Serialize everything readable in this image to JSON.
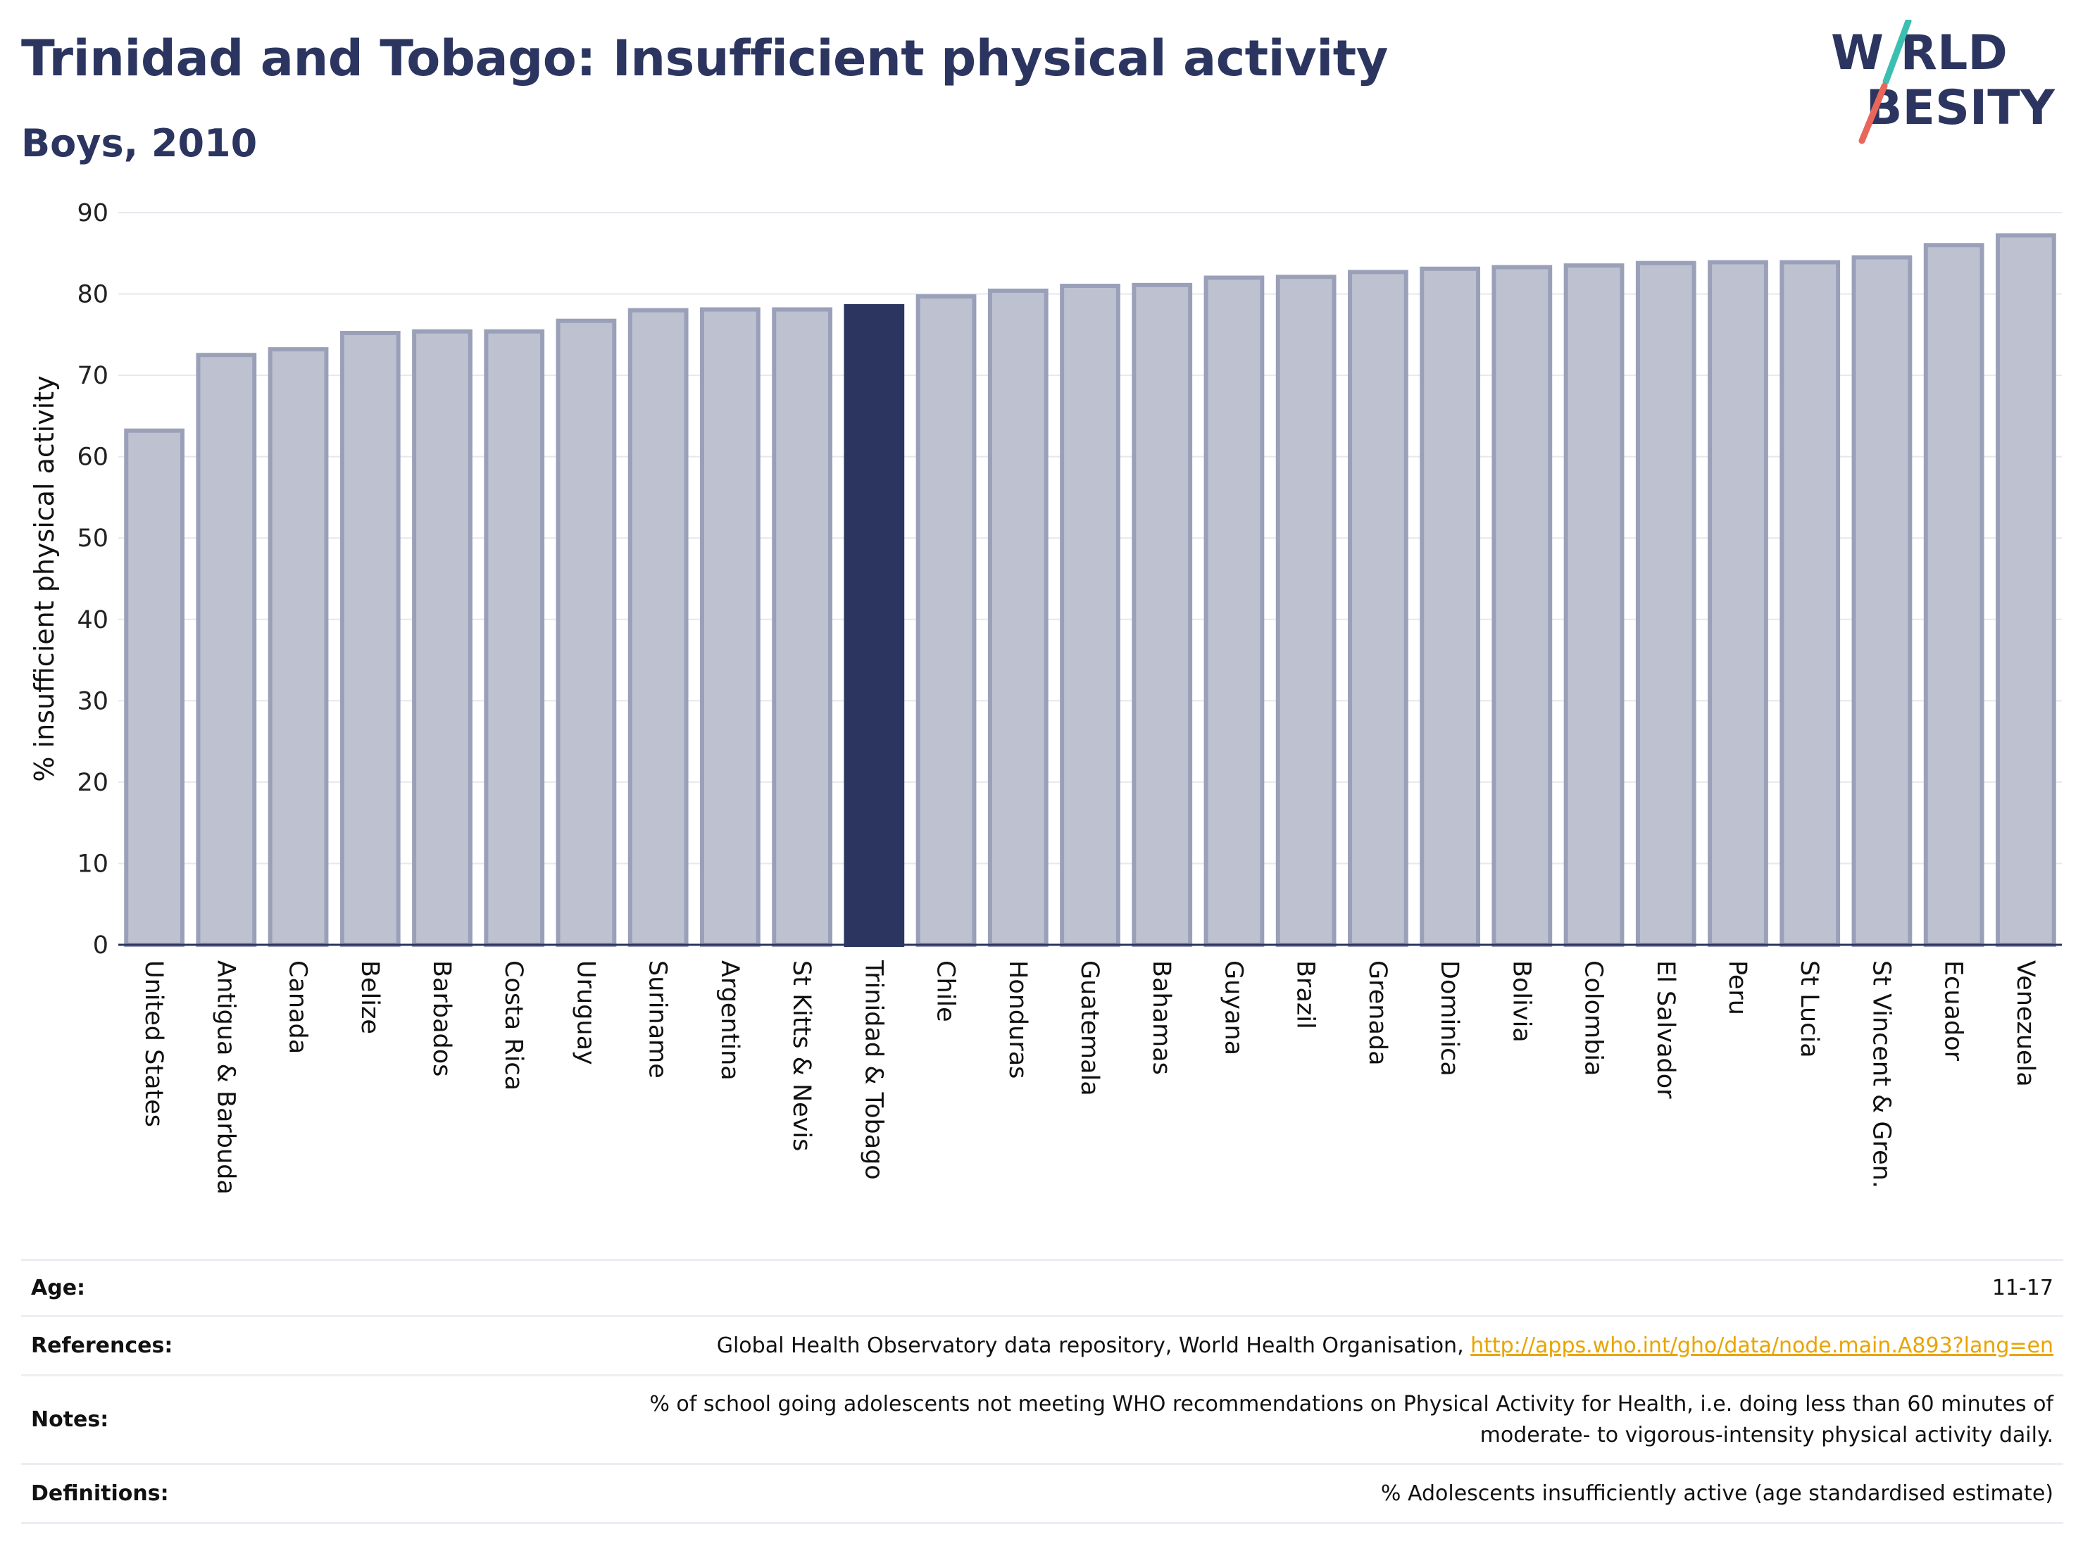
{
  "header": {
    "title": "Trinidad and Tobago: Insufficient physical activity",
    "subtitle": "Boys, 2010"
  },
  "logo": {
    "line1": "W RLD",
    "line2": " BESITY",
    "colors": {
      "text": "#2b3560",
      "slash_top": "#3bbfb0",
      "slash_bottom": "#e8665a"
    }
  },
  "colors": {
    "bar": "#bec2d0",
    "bar_stroke": "#9aa0b8",
    "highlight": "#2b3560",
    "grid": "#e6e8ee",
    "axis": "#2b3560"
  },
  "chart_data": {
    "type": "bar",
    "title": "Trinidad and Tobago: Insufficient physical activity",
    "subtitle": "Boys, 2010",
    "ylabel": "% insufficient physical activity",
    "xlabel": "",
    "ylim": [
      0,
      90
    ],
    "yticks": [
      0,
      10,
      20,
      30,
      40,
      50,
      60,
      70,
      80,
      90
    ],
    "grid": true,
    "highlight": "Trinidad & Tobago",
    "categories": [
      "United States",
      "Antigua & Barbuda",
      "Canada",
      "Belize",
      "Barbados",
      "Costa Rica",
      "Uruguay",
      "Suriname",
      "Argentina",
      "St Kitts & Nevis",
      "Trinidad & Tobago",
      "Chile",
      "Honduras",
      "Guatemala",
      "Bahamas",
      "Guyana",
      "Brazil",
      "Grenada",
      "Dominica",
      "Bolivia",
      "Colombia",
      "El Salvador",
      "Peru",
      "St Lucia",
      "St Vincent & Gren.",
      "Ecuador",
      "Venezuela"
    ],
    "values": [
      63.2,
      72.5,
      73.2,
      75.2,
      75.4,
      75.4,
      76.7,
      78.0,
      78.1,
      78.1,
      78.5,
      79.7,
      80.4,
      81.0,
      81.1,
      82.0,
      82.1,
      82.7,
      83.1,
      83.3,
      83.5,
      83.8,
      83.9,
      83.9,
      84.5,
      86.0,
      87.2
    ]
  },
  "info": {
    "age": {
      "label": "Age:",
      "value": "11-17"
    },
    "references": {
      "label": "References:",
      "value": "Global Health Observatory data repository, World Health Organisation, ",
      "link": "http://apps.who.int/gho/data/node.main.A893?lang=en"
    },
    "notes": {
      "label": "Notes:",
      "line1": "% of school going adolescents not meeting WHO recommendations on Physical Activity for Health, i.e. doing less than 60 minutes of",
      "line2": "moderate- to vigorous-intensity physical activity daily."
    },
    "definitions": {
      "label": "Definitions:",
      "value": "% Adolescents insufficiently active (age standardised estimate)"
    }
  }
}
